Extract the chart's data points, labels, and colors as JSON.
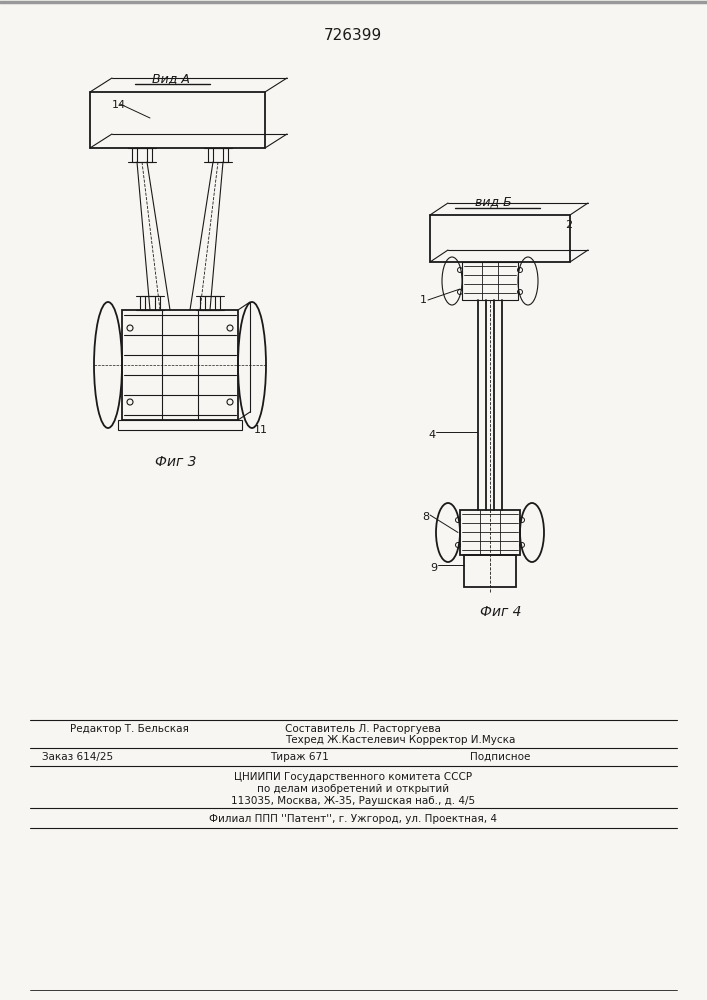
{
  "patent_number": "726399",
  "background_color": "#f8f6f2",
  "line_color": "#1a1a1a",
  "fig3_label": "Фиг 3",
  "fig4_label": "Фиг 4",
  "vid_a_label": "Вид А",
  "vid_b_label": "вид Б",
  "label_14": "14",
  "label_11": "11",
  "label_2": "2",
  "label_1": "1",
  "label_4": "4",
  "label_8": "8",
  "label_9": "9",
  "footer_editor": "Редактор Т. Бельская",
  "footer_sostavitel": "Составитель Л. Расторгуева",
  "footer_tehred": "Техред Ж.Кастелевич Корректор И.Муска",
  "footer_order": "Заказ 614/25",
  "footer_tirazh": "Тираж 671",
  "footer_podpisnoe": "Подписное",
  "footer_tsnipi": "ЦНИИПИ Государственного комитета СССР",
  "footer_tsnipi2": "по делам изобретений и открытий",
  "footer_address": "113035, Москва, Ж-35, Раушская наб., д. 4/5",
  "footer_filial": "Филиал ППП ''Патент'', г. Ужгород, ул. Проектная, 4"
}
